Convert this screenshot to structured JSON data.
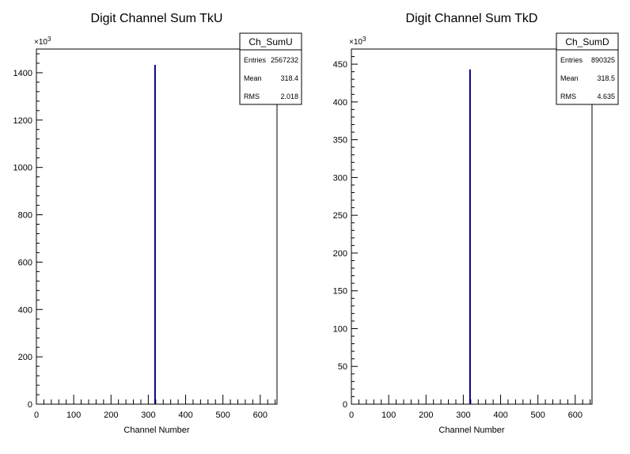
{
  "chart_data": [
    {
      "type": "bar",
      "title": "Digit Channel Sum TkU",
      "xlabel": "Channel Number",
      "ylabel": "",
      "y_multiplier_label": "×10³",
      "xlim": [
        0,
        645
      ],
      "ylim": [
        0,
        1500
      ],
      "x_ticks": [
        0,
        100,
        200,
        300,
        400,
        500,
        600
      ],
      "y_ticks": [
        0,
        200,
        400,
        600,
        800,
        1000,
        1200,
        1400
      ],
      "x_ticks_label": [
        "0",
        "100",
        "200",
        "300",
        "400",
        "500",
        "600"
      ],
      "y_ticks_label": [
        "0",
        "200",
        "400",
        "600",
        "800",
        "1000",
        "1200",
        "1400"
      ],
      "bins": [
        {
          "x": 318,
          "value": 1433
        }
      ],
      "stats": {
        "name": "Ch_SumU",
        "rows": [
          {
            "label": "Entries",
            "value": "2567232"
          },
          {
            "label": "Mean",
            "value": "318.4"
          },
          {
            "label": "RMS",
            "value": "2.018"
          }
        ]
      },
      "line_color": "#000080"
    },
    {
      "type": "bar",
      "title": "Digit Channel Sum TkD",
      "xlabel": "Channel Number",
      "ylabel": "",
      "y_multiplier_label": "×10³",
      "xlim": [
        0,
        645
      ],
      "ylim": [
        0,
        470
      ],
      "x_ticks": [
        0,
        100,
        200,
        300,
        400,
        500,
        600
      ],
      "y_ticks": [
        0,
        50,
        100,
        150,
        200,
        250,
        300,
        350,
        400,
        450
      ],
      "x_ticks_label": [
        "0",
        "100",
        "200",
        "300",
        "400",
        "500",
        "600"
      ],
      "y_ticks_label": [
        "0",
        "50",
        "100",
        "150",
        "200",
        "250",
        "300",
        "350",
        "400",
        "450"
      ],
      "bins": [
        {
          "x": 318,
          "value": 443
        }
      ],
      "stats": {
        "name": "Ch_SumD",
        "rows": [
          {
            "label": "Entries",
            "value": "890325"
          },
          {
            "label": "Mean",
            "value": "318.5"
          },
          {
            "label": "RMS",
            "value": "4.635"
          }
        ]
      },
      "line_color": "#000080"
    }
  ]
}
